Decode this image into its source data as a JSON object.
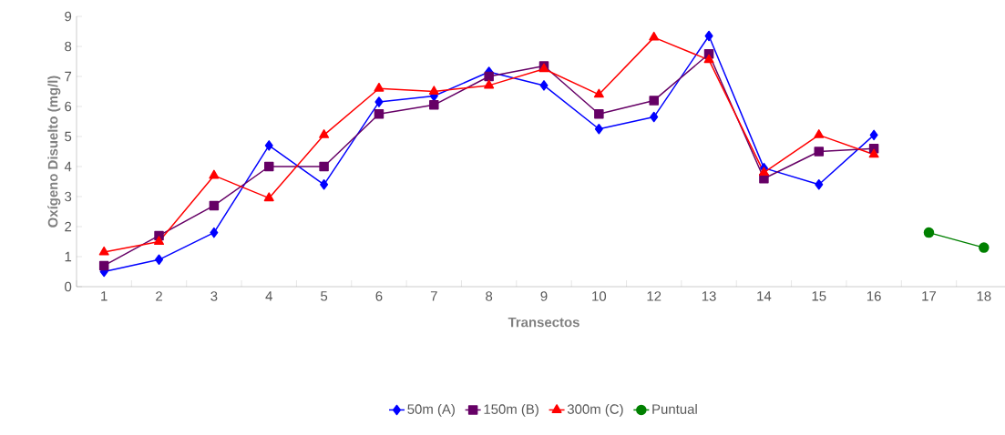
{
  "chart_data": {
    "type": "line",
    "xlabel": "Transectos",
    "ylabel": "Oxígeno Disuelto (mg/l)",
    "categories": [
      "1",
      "2",
      "3",
      "4",
      "5",
      "6",
      "7",
      "8",
      "9",
      "10",
      "12",
      "13",
      "14",
      "15",
      "16",
      "17",
      "18"
    ],
    "ylim": [
      0,
      9
    ],
    "yticks": [
      0,
      1,
      2,
      3,
      4,
      5,
      6,
      7,
      8,
      9
    ],
    "legend": "bottom",
    "grid": false,
    "series": [
      {
        "name": "50m (A)",
        "color": "#0000ff",
        "marker": "diamond",
        "values": [
          0.5,
          0.9,
          1.8,
          4.7,
          3.4,
          6.15,
          6.35,
          7.15,
          6.7,
          5.25,
          5.65,
          8.35,
          3.95,
          3.4,
          5.05,
          null,
          null
        ]
      },
      {
        "name": "150m (B)",
        "color": "#660066",
        "marker": "square",
        "values": [
          0.7,
          1.7,
          2.7,
          4.0,
          4.0,
          5.75,
          6.05,
          7.0,
          7.35,
          5.75,
          6.2,
          7.75,
          3.6,
          4.5,
          4.6,
          null,
          null
        ]
      },
      {
        "name": "300m (C)",
        "color": "#ff0000",
        "marker": "triangle",
        "values": [
          1.15,
          1.5,
          3.7,
          2.95,
          5.05,
          6.6,
          6.5,
          6.7,
          7.25,
          6.4,
          8.3,
          7.55,
          3.8,
          5.05,
          4.4,
          null,
          null
        ]
      },
      {
        "name": "Puntual",
        "color": "#008000",
        "marker": "circle",
        "values": [
          null,
          null,
          null,
          null,
          null,
          null,
          null,
          null,
          null,
          null,
          null,
          null,
          null,
          null,
          null,
          1.8,
          1.3
        ]
      }
    ]
  }
}
